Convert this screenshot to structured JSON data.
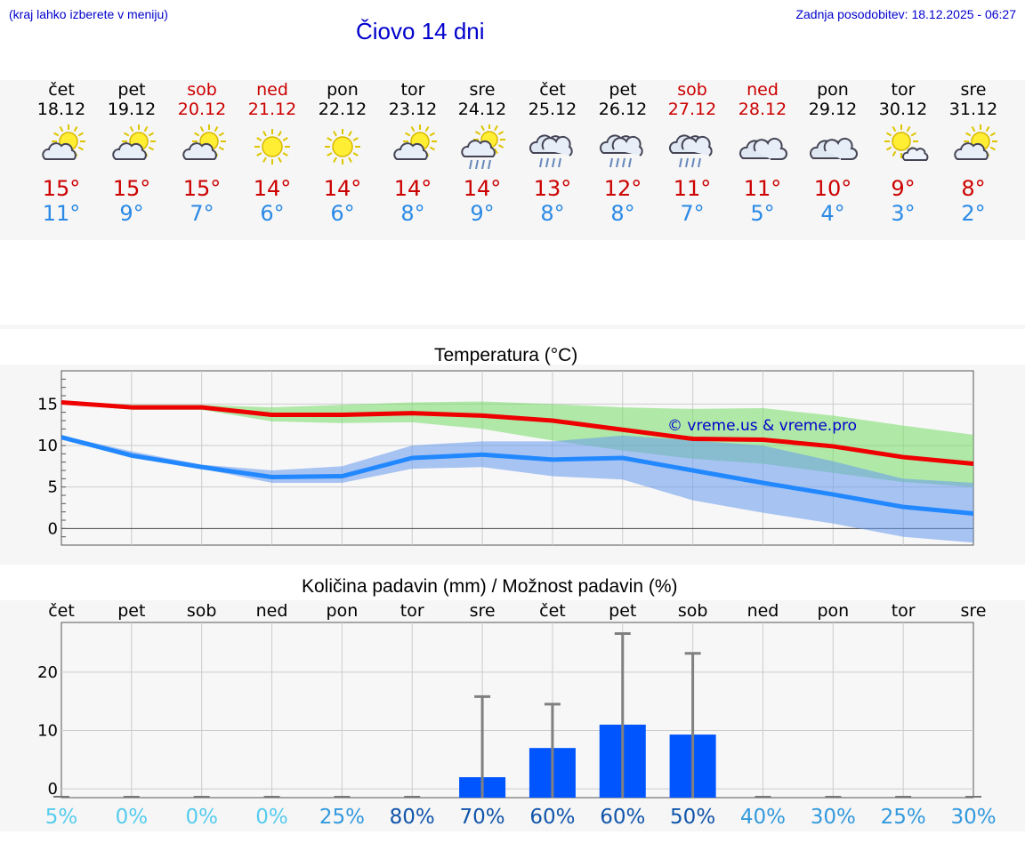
{
  "header": {
    "menu_hint": "(kraj lahko izberete v meniju)",
    "title": "Čiovo 14 dni",
    "updated": "Zadnja posodobitev: 18.12.2025 - 06:27"
  },
  "days": [
    {
      "name": "čet",
      "date": "18.12",
      "icon": "partly-cloudy-sun-icon",
      "tmax": "15°",
      "tmin": "11°",
      "weekend": false
    },
    {
      "name": "pet",
      "date": "19.12",
      "icon": "partly-cloudy-sun-icon",
      "tmax": "15°",
      "tmin": "9°",
      "weekend": false
    },
    {
      "name": "sob",
      "date": "20.12",
      "icon": "partly-cloudy-sun-icon",
      "tmax": "15°",
      "tmin": "7°",
      "weekend": true
    },
    {
      "name": "ned",
      "date": "21.12",
      "icon": "sun-icon",
      "tmax": "14°",
      "tmin": "6°",
      "weekend": true
    },
    {
      "name": "pon",
      "date": "22.12",
      "icon": "sun-icon",
      "tmax": "14°",
      "tmin": "6°",
      "weekend": false
    },
    {
      "name": "tor",
      "date": "23.12",
      "icon": "partly-cloudy-sun-icon",
      "tmax": "14°",
      "tmin": "8°",
      "weekend": false
    },
    {
      "name": "sre",
      "date": "24.12",
      "icon": "sun-cloud-rain-icon",
      "tmax": "14°",
      "tmin": "9°",
      "weekend": false
    },
    {
      "name": "čet",
      "date": "25.12",
      "icon": "cloud-rain-icon",
      "tmax": "13°",
      "tmin": "8°",
      "weekend": false
    },
    {
      "name": "pet",
      "date": "26.12",
      "icon": "cloud-rain-icon",
      "tmax": "12°",
      "tmin": "8°",
      "weekend": false
    },
    {
      "name": "sob",
      "date": "27.12",
      "icon": "cloud-rain-icon",
      "tmax": "11°",
      "tmin": "7°",
      "weekend": true
    },
    {
      "name": "ned",
      "date": "28.12",
      "icon": "cloudy-icon",
      "tmax": "11°",
      "tmin": "5°",
      "weekend": true
    },
    {
      "name": "pon",
      "date": "29.12",
      "icon": "cloudy-icon",
      "tmax": "10°",
      "tmin": "4°",
      "weekend": false
    },
    {
      "name": "tor",
      "date": "30.12",
      "icon": "sun-small-cloud-icon",
      "tmax": "9°",
      "tmin": "3°",
      "weekend": false
    },
    {
      "name": "sre",
      "date": "31.12",
      "icon": "partly-cloudy-sun-icon",
      "tmax": "8°",
      "tmin": "2°",
      "weekend": false
    }
  ],
  "colors": {
    "max": "#ee0000",
    "min": "#2288ff",
    "max_band": "#77dd66",
    "min_band": "#6699ee",
    "bar": "#0055ff",
    "err": "#808080"
  },
  "chart_data": [
    {
      "type": "line",
      "title": "Temperatura (°C)",
      "ylabel": "°C",
      "watermark": "© vreme.us & vreme.pro",
      "x": [
        0,
        1,
        2,
        3,
        4,
        5,
        6,
        7,
        8,
        9,
        10,
        11,
        12,
        13
      ],
      "ylim": [
        -2,
        19
      ],
      "yticks": [
        0,
        5,
        10,
        15
      ],
      "series": [
        {
          "name": "max",
          "values": [
            15.2,
            14.6,
            14.6,
            13.7,
            13.7,
            13.9,
            13.6,
            13.0,
            11.9,
            10.8,
            10.7,
            9.9,
            8.6,
            7.8
          ],
          "low": [
            15.1,
            14.3,
            14.3,
            12.9,
            12.7,
            12.8,
            12.0,
            10.6,
            9.4,
            8.4,
            7.8,
            6.7,
            5.6,
            5.0
          ],
          "high": [
            15.3,
            14.9,
            14.9,
            14.6,
            14.9,
            15.2,
            15.3,
            15.0,
            14.6,
            14.4,
            14.5,
            13.6,
            12.4,
            11.3
          ]
        },
        {
          "name": "min",
          "values": [
            11.0,
            8.8,
            7.4,
            6.2,
            6.3,
            8.5,
            8.9,
            8.3,
            8.5,
            7.0,
            5.5,
            4.1,
            2.6,
            1.8
          ],
          "low": [
            10.9,
            8.5,
            7.2,
            5.5,
            5.5,
            7.2,
            7.4,
            6.3,
            5.9,
            3.4,
            1.9,
            0.6,
            -1.0,
            -1.7
          ],
          "high": [
            11.2,
            9.3,
            7.7,
            7.0,
            7.5,
            10.0,
            10.5,
            10.5,
            11.2,
            10.6,
            10.0,
            8.1,
            6.0,
            5.5
          ]
        }
      ]
    },
    {
      "type": "bar",
      "title": "Količina padavin (mm) / Možnost padavin (%)",
      "categories": [
        "čet",
        "pet",
        "sob",
        "ned",
        "pon",
        "tor",
        "sre",
        "čet",
        "pet",
        "sob",
        "ned",
        "pon",
        "tor",
        "sre"
      ],
      "values": [
        0,
        0,
        0,
        0,
        0,
        0,
        2,
        7,
        11,
        9.3,
        0,
        0,
        0,
        0
      ],
      "error_max": [
        0,
        0,
        0,
        0,
        0,
        0,
        15.8,
        14.5,
        26.6,
        23.2,
        0,
        0,
        0,
        0
      ],
      "ylim": [
        -1.5,
        28.5
      ],
      "yticks": [
        0,
        10,
        20
      ],
      "probability": [
        "5%",
        "0%",
        "0%",
        "0%",
        "25%",
        "80%",
        "70%",
        "60%",
        "60%",
        "50%",
        "40%",
        "30%",
        "25%",
        "30%"
      ],
      "probability_colors": [
        "#55ccee",
        "#55ccee",
        "#55ccee",
        "#55ccee",
        "#3399dd",
        "#1155aa",
        "#1155aa",
        "#1155aa",
        "#1155aa",
        "#1155aa",
        "#3399dd",
        "#3399dd",
        "#3399dd",
        "#3399dd"
      ]
    }
  ]
}
